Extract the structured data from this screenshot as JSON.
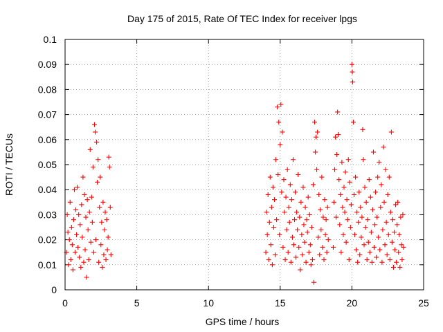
{
  "chart_data": {
    "type": "scatter",
    "title": "Day 175 of 2015, Rate Of TEC Index for receiver lpgs",
    "xlabel": "GPS time / hours",
    "ylabel": "ROTI / TECUs",
    "xlim": [
      0,
      25
    ],
    "ylim": [
      0,
      0.1
    ],
    "xticks": [
      0,
      5,
      10,
      15,
      20,
      25
    ],
    "yticks": [
      0,
      0.01,
      0.02,
      0.03,
      0.04,
      0.05,
      0.06,
      0.07,
      0.08,
      0.09,
      0.1
    ],
    "xtick_labels": [
      "0",
      "5",
      "10",
      "15",
      "20",
      "25"
    ],
    "ytick_labels": [
      "0",
      "0.01",
      "0.02",
      "0.03",
      "0.04",
      "0.05",
      "0.06",
      "0.07",
      "0.08",
      "0.09",
      "0.1"
    ],
    "grid": true,
    "legend": "none",
    "marker": "plus",
    "series": [
      {
        "name": "ROTI",
        "color": "#ff0000",
        "points": [
          [
            0.1,
            0.015
          ],
          [
            0.15,
            0.03
          ],
          [
            0.2,
            0.023
          ],
          [
            0.25,
            0.01
          ],
          [
            0.3,
            0.02
          ],
          [
            0.35,
            0.035
          ],
          [
            0.4,
            0.012
          ],
          [
            0.45,
            0.025
          ],
          [
            0.5,
            0.018
          ],
          [
            0.55,
            0.008
          ],
          [
            0.6,
            0.028
          ],
          [
            0.65,
            0.04
          ],
          [
            0.7,
            0.015
          ],
          [
            0.75,
            0.032
          ],
          [
            0.8,
            0.022
          ],
          [
            0.85,
            0.041
          ],
          [
            0.9,
            0.017
          ],
          [
            0.95,
            0.03
          ],
          [
            1.0,
            0.013
          ],
          [
            1.05,
            0.026
          ],
          [
            1.1,
            0.009
          ],
          [
            1.15,
            0.034
          ],
          [
            1.2,
            0.021
          ],
          [
            1.25,
            0.045
          ],
          [
            1.3,
            0.011
          ],
          [
            1.35,
            0.038
          ],
          [
            1.4,
            0.016
          ],
          [
            1.45,
            0.029
          ],
          [
            1.5,
            0.005
          ],
          [
            1.55,
            0.036
          ],
          [
            1.6,
            0.024
          ],
          [
            1.65,
            0.012
          ],
          [
            1.7,
            0.031
          ],
          [
            1.75,
            0.056
          ],
          [
            1.8,
            0.019
          ],
          [
            1.85,
            0.037
          ],
          [
            1.9,
            0.027
          ],
          [
            1.95,
            0.049
          ],
          [
            2.0,
            0.015
          ],
          [
            2.05,
            0.066
          ],
          [
            2.1,
            0.063
          ],
          [
            2.15,
            0.02
          ],
          [
            2.2,
            0.059
          ],
          [
            2.25,
            0.043
          ],
          [
            2.3,
            0.052
          ],
          [
            2.35,
            0.011
          ],
          [
            2.4,
            0.033
          ],
          [
            2.45,
            0.045
          ],
          [
            2.5,
            0.018
          ],
          [
            2.55,
            0.027
          ],
          [
            2.6,
            0.009
          ],
          [
            2.65,
            0.035
          ],
          [
            2.7,
            0.014
          ],
          [
            2.75,
            0.024
          ],
          [
            2.8,
            0.031
          ],
          [
            2.85,
            0.012
          ],
          [
            2.9,
            0.028
          ],
          [
            2.95,
            0.016
          ],
          [
            3.0,
            0.021
          ],
          [
            3.05,
            0.053
          ],
          [
            3.1,
            0.049
          ],
          [
            3.15,
            0.033
          ],
          [
            3.2,
            0.014
          ],
          [
            14.0,
            0.015
          ],
          [
            14.05,
            0.031
          ],
          [
            14.1,
            0.022
          ],
          [
            14.15,
            0.038
          ],
          [
            14.2,
            0.012
          ],
          [
            14.25,
            0.027
          ],
          [
            14.3,
            0.045
          ],
          [
            14.35,
            0.018
          ],
          [
            14.4,
            0.033
          ],
          [
            14.45,
            0.01
          ],
          [
            14.5,
            0.041
          ],
          [
            14.55,
            0.025
          ],
          [
            14.6,
            0.036
          ],
          [
            14.65,
            0.014
          ],
          [
            14.7,
            0.052
          ],
          [
            14.75,
            0.028
          ],
          [
            14.8,
            0.073
          ],
          [
            14.85,
            0.046
          ],
          [
            14.9,
            0.067
          ],
          [
            14.95,
            0.022
          ],
          [
            15.0,
            0.058
          ],
          [
            15.05,
            0.074
          ],
          [
            15.1,
            0.039
          ],
          [
            15.15,
            0.063
          ],
          [
            15.2,
            0.017
          ],
          [
            15.25,
            0.044
          ],
          [
            15.3,
            0.031
          ],
          [
            15.35,
            0.012
          ],
          [
            15.4,
            0.037
          ],
          [
            15.45,
            0.024
          ],
          [
            15.5,
            0.048
          ],
          [
            15.55,
            0.015
          ],
          [
            15.6,
            0.033
          ],
          [
            15.65,
            0.027
          ],
          [
            15.7,
            0.042
          ],
          [
            15.75,
            0.011
          ],
          [
            15.8,
            0.036
          ],
          [
            15.85,
            0.021
          ],
          [
            15.9,
            0.052
          ],
          [
            15.95,
            0.018
          ],
          [
            16.0,
            0.028
          ],
          [
            16.05,
            0.039
          ],
          [
            16.1,
            0.013
          ],
          [
            16.15,
            0.031
          ],
          [
            16.2,
            0.024
          ],
          [
            16.25,
            0.046
          ],
          [
            16.3,
            0.017
          ],
          [
            16.35,
            0.029
          ],
          [
            16.4,
            0.008
          ],
          [
            16.45,
            0.035
          ],
          [
            16.5,
            0.022
          ],
          [
            16.55,
            0.014
          ],
          [
            16.6,
            0.041
          ],
          [
            16.65,
            0.026
          ],
          [
            16.7,
            0.019
          ],
          [
            16.75,
            0.033
          ],
          [
            16.8,
            0.011
          ],
          [
            16.85,
            0.028
          ],
          [
            16.9,
            0.023
          ],
          [
            16.95,
            0.037
          ],
          [
            17.0,
            0.015
          ],
          [
            17.05,
            0.03
          ],
          [
            17.1,
            0.018
          ],
          [
            17.15,
            0.01
          ],
          [
            17.2,
            0.025
          ],
          [
            17.25,
            0.012
          ],
          [
            17.3,
            0.042
          ],
          [
            17.35,
            0.003
          ],
          [
            17.4,
            0.067
          ],
          [
            17.45,
            0.055
          ],
          [
            17.5,
            0.061
          ],
          [
            17.55,
            0.048
          ],
          [
            17.6,
            0.063
          ],
          [
            17.65,
            0.021
          ],
          [
            17.7,
            0.038
          ],
          [
            17.75,
            0.014
          ],
          [
            17.8,
            0.032
          ],
          [
            17.85,
            0.024
          ],
          [
            17.9,
            0.045
          ],
          [
            17.95,
            0.017
          ],
          [
            18.0,
            0.029
          ],
          [
            18.05,
            0.012
          ],
          [
            18.1,
            0.036
          ],
          [
            18.15,
            0.022
          ],
          [
            18.2,
            0.028
          ],
          [
            18.25,
            0.015
          ],
          [
            18.3,
            0.033
          ],
          [
            18.35,
            0.02
          ],
          [
            18.7,
            0.017
          ],
          [
            18.75,
            0.035
          ],
          [
            18.8,
            0.048
          ],
          [
            18.85,
            0.061
          ],
          [
            18.9,
            0.029
          ],
          [
            18.95,
            0.054
          ],
          [
            19.0,
            0.071
          ],
          [
            19.05,
            0.062
          ],
          [
            19.1,
            0.044
          ],
          [
            19.15,
            0.026
          ],
          [
            19.2,
            0.038
          ],
          [
            19.25,
            0.015
          ],
          [
            19.3,
            0.051
          ],
          [
            19.35,
            0.033
          ],
          [
            19.4,
            0.022
          ],
          [
            19.45,
            0.041
          ],
          [
            19.5,
            0.031
          ],
          [
            19.55,
            0.047
          ],
          [
            19.6,
            0.019
          ],
          [
            19.65,
            0.036
          ],
          [
            19.7,
            0.028
          ],
          [
            19.75,
            0.052
          ],
          [
            19.8,
            0.012
          ],
          [
            19.85,
            0.043
          ],
          [
            19.9,
            0.025
          ],
          [
            19.95,
            0.034
          ],
          [
            20.0,
            0.09
          ],
          [
            20.03,
            0.087
          ],
          [
            20.05,
            0.083
          ],
          [
            20.1,
            0.067
          ],
          [
            20.15,
            0.038
          ],
          [
            20.2,
            0.022
          ],
          [
            20.25,
            0.045
          ],
          [
            20.3,
            0.016
          ],
          [
            20.35,
            0.031
          ],
          [
            20.4,
            0.011
          ],
          [
            20.45,
            0.027
          ],
          [
            20.5,
            0.039
          ],
          [
            20.55,
            0.014
          ],
          [
            20.6,
            0.033
          ],
          [
            20.65,
            0.021
          ],
          [
            20.7,
            0.029
          ],
          [
            20.75,
            0.064
          ],
          [
            20.8,
            0.052
          ],
          [
            20.85,
            0.018
          ],
          [
            20.9,
            0.041
          ],
          [
            20.95,
            0.025
          ],
          [
            21.0,
            0.035
          ],
          [
            21.05,
            0.012
          ],
          [
            21.1,
            0.028
          ],
          [
            21.15,
            0.019
          ],
          [
            21.2,
            0.044
          ],
          [
            21.25,
            0.015
          ],
          [
            21.3,
            0.037
          ],
          [
            21.35,
            0.023
          ],
          [
            21.4,
            0.011
          ],
          [
            21.45,
            0.032
          ],
          [
            21.5,
            0.055
          ],
          [
            21.55,
            0.017
          ],
          [
            21.6,
            0.026
          ],
          [
            21.65,
            0.039
          ],
          [
            21.7,
            0.013
          ],
          [
            21.75,
            0.029
          ],
          [
            21.8,
            0.045
          ],
          [
            21.85,
            0.021
          ],
          [
            21.9,
            0.051
          ],
          [
            21.95,
            0.016
          ],
          [
            22.0,
            0.033
          ],
          [
            22.05,
            0.042
          ],
          [
            22.1,
            0.011
          ],
          [
            22.15,
            0.024
          ],
          [
            22.2,
            0.057
          ],
          [
            22.25,
            0.035
          ],
          [
            22.3,
            0.018
          ],
          [
            22.35,
            0.048
          ],
          [
            22.4,
            0.027
          ],
          [
            22.45,
            0.014
          ],
          [
            22.5,
            0.038
          ],
          [
            22.55,
            0.022
          ],
          [
            22.6,
            0.045
          ],
          [
            22.65,
            0.012
          ],
          [
            22.7,
            0.031
          ],
          [
            22.75,
            0.063
          ],
          [
            22.8,
            0.019
          ],
          [
            22.85,
            0.028
          ],
          [
            22.9,
            0.009
          ],
          [
            22.95,
            0.023
          ],
          [
            23.0,
            0.016
          ],
          [
            23.05,
            0.034
          ],
          [
            23.1,
            0.011
          ],
          [
            23.15,
            0.026
          ],
          [
            23.2,
            0.035
          ],
          [
            23.25,
            0.015
          ],
          [
            23.3,
            0.022
          ],
          [
            23.35,
            0.009
          ],
          [
            23.4,
            0.029
          ],
          [
            23.45,
            0.018
          ],
          [
            23.5,
            0.012
          ],
          [
            23.55,
            0.03
          ],
          [
            23.6,
            0.017
          ]
        ]
      }
    ]
  }
}
